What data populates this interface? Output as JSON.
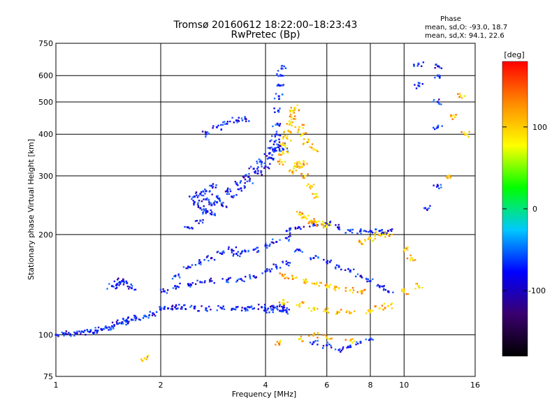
{
  "chart_data": {
    "type": "scatter",
    "title": "Tromsø 20160612 18:22:00–18:23:43",
    "subtitle": "RwPretec (Bp)",
    "xlabel": "Frequency [MHz]",
    "ylabel": "Stationary phase Virtual Height [km]",
    "xscale": "log",
    "yscale": "log",
    "xlim": [
      1,
      16
    ],
    "ylim": [
      75,
      750
    ],
    "xticks": [
      "1",
      "2",
      "4",
      "6",
      "8",
      "10",
      "16"
    ],
    "yticks": [
      "75",
      "100",
      "200",
      "300",
      "400",
      "500",
      "600",
      "750"
    ],
    "grid": true,
    "phase_info": {
      "heading": "Phase",
      "line1": "mean, sd,O: -93.0, 18.7",
      "line2": "mean, sd,X:  94.1, 22.6"
    },
    "colorbar": {
      "label": "[deg]",
      "range": [
        -180,
        180
      ],
      "ticks": [
        "100",
        "0",
        "-100"
      ],
      "colors": [
        "#000000",
        "#3a006e",
        "#0000ff",
        "#00c8ff",
        "#00ff00",
        "#ffff00",
        "#ff8c00",
        "#ff0000"
      ]
    },
    "series": [
      {
        "marker_color_note": "O-mode echoes, phase about -100 deg (blue/purple)",
        "points": [
          [
            1.0,
            100
          ],
          [
            1.05,
            101
          ],
          [
            1.1,
            100
          ],
          [
            1.15,
            101
          ],
          [
            1.2,
            102
          ],
          [
            1.25,
            102
          ],
          [
            1.3,
            103
          ],
          [
            1.35,
            104
          ],
          [
            1.4,
            105
          ],
          [
            1.45,
            106
          ],
          [
            1.5,
            108
          ],
          [
            1.55,
            109
          ],
          [
            1.6,
            110
          ],
          [
            1.65,
            111
          ],
          [
            1.7,
            112
          ],
          [
            1.8,
            114
          ],
          [
            1.9,
            116
          ],
          [
            2.0,
            119
          ],
          [
            2.1,
            120
          ],
          [
            2.2,
            121
          ],
          [
            2.3,
            121
          ],
          [
            2.5,
            120
          ],
          [
            2.7,
            120
          ],
          [
            3.0,
            120
          ],
          [
            3.3,
            121
          ],
          [
            3.6,
            121
          ],
          [
            3.9,
            121
          ],
          [
            4.2,
            122
          ],
          [
            4.5,
            121
          ],
          [
            2.05,
            135
          ],
          [
            2.2,
            140
          ],
          [
            2.4,
            142
          ],
          [
            2.6,
            144
          ],
          [
            2.8,
            145
          ],
          [
            3.1,
            146
          ],
          [
            3.4,
            147
          ],
          [
            3.7,
            150
          ],
          [
            4.0,
            155
          ],
          [
            4.3,
            160
          ],
          [
            4.6,
            163
          ],
          [
            2.2,
            150
          ],
          [
            2.4,
            160
          ],
          [
            2.6,
            165
          ],
          [
            2.8,
            170
          ],
          [
            3.0,
            175
          ],
          [
            3.2,
            180
          ],
          [
            2.4,
            210
          ],
          [
            2.6,
            220
          ],
          [
            2.8,
            230
          ],
          [
            3.0,
            245
          ],
          [
            3.2,
            260
          ],
          [
            3.4,
            275
          ],
          [
            3.6,
            290
          ],
          [
            3.8,
            305
          ],
          [
            4.0,
            320
          ],
          [
            4.1,
            340
          ],
          [
            4.2,
            360
          ],
          [
            4.25,
            380
          ],
          [
            4.3,
            400
          ],
          [
            4.33,
            430
          ],
          [
            4.35,
            470
          ],
          [
            4.37,
            520
          ],
          [
            4.4,
            560
          ],
          [
            4.42,
            600
          ],
          [
            4.45,
            630
          ],
          [
            2.5,
            250
          ],
          [
            2.7,
            255
          ],
          [
            2.9,
            260
          ],
          [
            3.1,
            270
          ],
          [
            3.3,
            285
          ],
          [
            3.5,
            300
          ],
          [
            3.7,
            315
          ],
          [
            3.9,
            330
          ],
          [
            4.1,
            350
          ],
          [
            4.25,
            360
          ],
          [
            4.4,
            370
          ],
          [
            4.5,
            360
          ],
          [
            1.45,
            140
          ],
          [
            1.5,
            142
          ],
          [
            1.55,
            145
          ],
          [
            1.6,
            143
          ],
          [
            1.65,
            138
          ],
          [
            2.6,
            240
          ],
          [
            2.7,
            235
          ],
          [
            2.8,
            245
          ],
          [
            2.9,
            250
          ],
          [
            2.5,
            260
          ],
          [
            2.6,
            265
          ],
          [
            2.7,
            270
          ],
          [
            2.8,
            280
          ],
          [
            3.3,
            175
          ],
          [
            3.5,
            178
          ],
          [
            3.7,
            180
          ],
          [
            4.0,
            185
          ],
          [
            4.3,
            190
          ],
          [
            4.6,
            195
          ],
          [
            4.6,
            205
          ],
          [
            5.0,
            210
          ],
          [
            5.5,
            215
          ],
          [
            6.0,
            215
          ],
          [
            6.5,
            210
          ],
          [
            7.0,
            205
          ],
          [
            7.5,
            205
          ],
          [
            8.0,
            205
          ],
          [
            8.5,
            205
          ],
          [
            9.0,
            205
          ],
          [
            3.5,
            120
          ],
          [
            4.0,
            118
          ],
          [
            4.2,
            119
          ],
          [
            4.4,
            118
          ],
          [
            4.6,
            117
          ],
          [
            2.7,
            400
          ],
          [
            2.9,
            420
          ],
          [
            3.1,
            430
          ],
          [
            3.3,
            440
          ],
          [
            3.5,
            445
          ],
          [
            5.0,
            180
          ],
          [
            5.5,
            170
          ],
          [
            6.0,
            165
          ],
          [
            6.5,
            160
          ],
          [
            7.0,
            155
          ],
          [
            7.5,
            150
          ],
          [
            8.0,
            145
          ],
          [
            8.5,
            140
          ],
          [
            9.0,
            135
          ],
          [
            11.0,
            650
          ],
          [
            11.0,
            560
          ],
          [
            12.5,
            640
          ],
          [
            12.5,
            600
          ],
          [
            12.5,
            500
          ],
          [
            12.5,
            420
          ],
          [
            12.5,
            280
          ],
          [
            11.5,
            240
          ],
          [
            5.5,
            95
          ],
          [
            6.0,
            93
          ],
          [
            6.5,
            90
          ],
          [
            7.0,
            92
          ],
          [
            7.5,
            95
          ],
          [
            8.0,
            97
          ]
        ]
      },
      {
        "marker_color_note": "X-mode echoes, phase about +100 deg (yellow/orange)",
        "points": [
          [
            4.45,
            330
          ],
          [
            4.5,
            350
          ],
          [
            4.55,
            370
          ],
          [
            4.6,
            390
          ],
          [
            4.65,
            410
          ],
          [
            4.7,
            430
          ],
          [
            4.75,
            450
          ],
          [
            4.8,
            470
          ],
          [
            4.85,
            480
          ],
          [
            5.0,
            420
          ],
          [
            5.1,
            400
          ],
          [
            5.3,
            380
          ],
          [
            5.5,
            360
          ],
          [
            4.8,
            310
          ],
          [
            4.9,
            320
          ],
          [
            5.0,
            330
          ],
          [
            5.1,
            320
          ],
          [
            5.2,
            300
          ],
          [
            5.4,
            280
          ],
          [
            5.6,
            260
          ],
          [
            5.0,
            230
          ],
          [
            5.2,
            225
          ],
          [
            5.4,
            220
          ],
          [
            5.6,
            218
          ],
          [
            5.8,
            215
          ],
          [
            6.0,
            212
          ],
          [
            4.5,
            150
          ],
          [
            4.8,
            148
          ],
          [
            5.2,
            145
          ],
          [
            5.6,
            142
          ],
          [
            6.0,
            140
          ],
          [
            6.5,
            138
          ],
          [
            7.0,
            136
          ],
          [
            7.5,
            135
          ],
          [
            4.5,
            125
          ],
          [
            5.0,
            123
          ],
          [
            5.5,
            120
          ],
          [
            6.0,
            118
          ],
          [
            6.5,
            117
          ],
          [
            7.0,
            116
          ],
          [
            8.0,
            118
          ],
          [
            8.5,
            120
          ],
          [
            9.0,
            122
          ],
          [
            7.5,
            190
          ],
          [
            8.0,
            195
          ],
          [
            8.5,
            200
          ],
          [
            9.0,
            200
          ],
          [
            10.0,
            180
          ],
          [
            10.5,
            170
          ],
          [
            11.0,
            140
          ],
          [
            10.0,
            135
          ],
          [
            4.4,
            95
          ],
          [
            5.0,
            97
          ],
          [
            5.5,
            100
          ],
          [
            6.0,
            98
          ],
          [
            7.0,
            96
          ],
          [
            1.8,
            85
          ],
          [
            14.0,
            450
          ],
          [
            14.5,
            520
          ],
          [
            15.0,
            400
          ],
          [
            13.5,
            300
          ]
        ]
      }
    ]
  }
}
